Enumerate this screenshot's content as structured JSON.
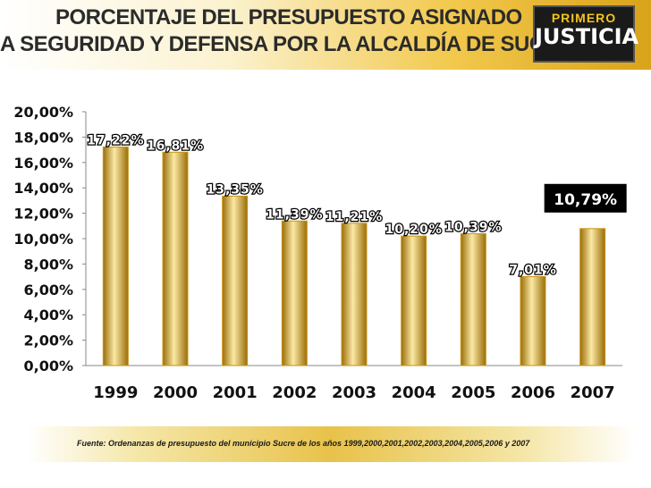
{
  "header": {
    "title_line1": "PORCENTAJE DEL PRESUPUESTO ASIGNADO",
    "title_line2": "A SEGURIDAD Y DEFENSA POR LA ALCALDÍA DE SUCRE",
    "logo_top": "PRIMERO",
    "logo_bottom": "JUSTICIA"
  },
  "chart_data": {
    "type": "bar",
    "categories": [
      "1999",
      "2000",
      "2001",
      "2002",
      "2003",
      "2004",
      "2005",
      "2006",
      "2007"
    ],
    "values": [
      17.22,
      16.81,
      13.35,
      11.39,
      11.21,
      10.2,
      10.39,
      7.01,
      10.79
    ],
    "data_labels": [
      "17,22%",
      "16,81%",
      "13,35%",
      "11,39%",
      "11,21%",
      "10,20%",
      "10,39%",
      "7,01%",
      "10,79%"
    ],
    "highlight_index": 8,
    "y_ticks": [
      "0,00%",
      "2,00%",
      "4,00%",
      "6,00%",
      "8,00%",
      "10,00%",
      "12,00%",
      "14,00%",
      "16,00%",
      "18,00%",
      "20,00%"
    ],
    "ylim": [
      0,
      20
    ],
    "grid": false,
    "colors": {
      "bar_edge": "#c99512",
      "bar_light": "#fbe9a6",
      "bar_mid": "#e6b62a",
      "bar_dark": "#9a6d06",
      "plot_bg": "#ffffff",
      "highlight_bg": "#000000",
      "highlight_text": "#ffffff"
    }
  },
  "footer": {
    "source": "Fuente: Ordenanzas de presupuesto del municipio Sucre de los años 1999,2000,2001,2002,2003,2004,2005,2006 y 2007"
  }
}
